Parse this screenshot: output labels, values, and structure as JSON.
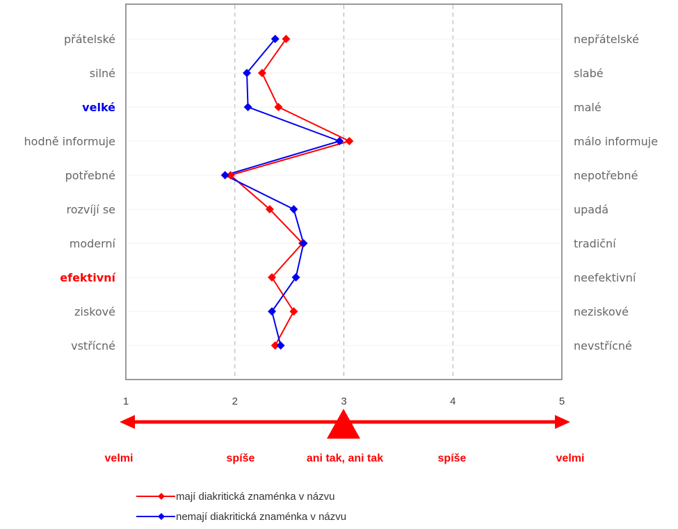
{
  "chart_data": {
    "type": "line",
    "orientation": "horizontal-profile",
    "title": "",
    "xlim": [
      1,
      5
    ],
    "x_ticks": [
      "1",
      "2",
      "3",
      "4",
      "5"
    ],
    "grid": "vertical-dashed",
    "left_labels": [
      "přátelské",
      "silné",
      "velké",
      "hodně informuje",
      "potřebné",
      "rozvíjí se",
      "moderní",
      "efektivní",
      "ziskové",
      "vstřícné"
    ],
    "right_labels": [
      "nepřátelské",
      "slabé",
      "malé",
      "málo informuje",
      "nepotřebné",
      "upadá",
      "tradiční",
      "neefektivní",
      "neziskové",
      "nevstřícné"
    ],
    "highlighted_left": {
      "velké": "#0000ee",
      "efektivní": "#ff0000"
    },
    "series": [
      {
        "name": "mají diakritická znaménka v názvu",
        "color": "#ff0000",
        "values": [
          2.47,
          2.25,
          2.4,
          3.05,
          1.96,
          2.32,
          2.62,
          2.34,
          2.54,
          2.37
        ]
      },
      {
        "name": "nemají diakritická znaménka v názvu",
        "color": "#0000ee",
        "values": [
          2.37,
          2.11,
          2.12,
          2.96,
          1.91,
          2.54,
          2.63,
          2.56,
          2.34,
          2.42
        ]
      }
    ],
    "scale_labels": [
      "velmi",
      "spíše",
      "ani tak, ani tak",
      "spíše",
      "velmi"
    ],
    "legend_position": "bottom-center"
  },
  "colors": {
    "accent": "#ff0000",
    "blue": "#0000ee",
    "frame": "#999999",
    "grid": "#aaaaaa"
  }
}
